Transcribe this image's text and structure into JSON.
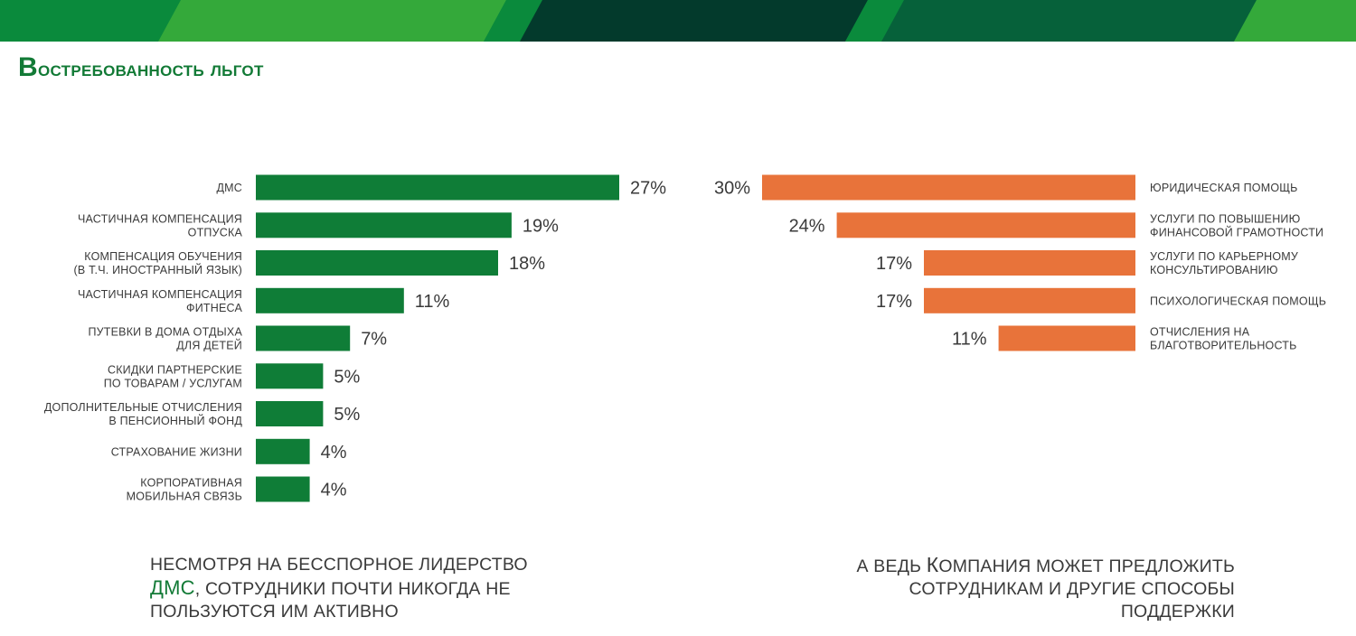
{
  "slide": {
    "title_first": "В",
    "title_rest": "остребованность льгот",
    "note_left": {
      "line1": "НЕСМОТРЯ НА БЕССПОРНОЕ ЛИДЕРСТВО",
      "line2_highlight": "ДМС",
      "line2_rest": ", СОТРУДНИКИ ПОЧТИ НИКОГДА НЕ",
      "line3": "ПОЛЬЗУЮТСЯ ИМ АКТИВНО"
    },
    "note_right": {
      "line1_a": "А ВЕДЬ ",
      "line1_cap": "К",
      "line1_b": "ОМПАНИЯ МОЖЕТ ПРЕДЛОЖИТЬ",
      "line2": "СОТРУДНИКАМ И ДРУГИЕ СПОСОБЫ",
      "line3": "ПОДДЕРЖКИ"
    }
  },
  "colors": {
    "green": "#0f7d37",
    "orange": "#e8733a",
    "title_green": "#127a36",
    "band_light": "#34a93a",
    "band_mid": "#0a8a3c",
    "band_dark": "#033a2c"
  },
  "chart_data": [
    {
      "type": "bar",
      "orientation": "horizontal",
      "categories": [
        [
          "ДМС"
        ],
        [
          "ЧАСТИЧНАЯ КОМПЕНСАЦИЯ",
          "ОТПУСКА"
        ],
        [
          "КОМПЕНСАЦИЯ ОБУЧЕНИЯ",
          "(В Т.Ч. ИНОСТРАННЫЙ ЯЗЫК)"
        ],
        [
          "ЧАСТИЧНАЯ КОМПЕНСАЦИЯ",
          "ФИТНЕСА"
        ],
        [
          "ПУТЕВКИ В ДОМА ОТДЫХА",
          "ДЛЯ ДЕТЕЙ"
        ],
        [
          "СКИДКИ ПАРТНЕРСКИЕ",
          "ПО ТОВАРАМ / УСЛУГАМ"
        ],
        [
          "ДОПОЛНИТЕЛЬНЫЕ ОТЧИСЛЕНИЯ",
          "В ПЕНСИОННЫЙ ФОНД"
        ],
        [
          "СТРАХОВАНИЕ ЖИЗНИ"
        ],
        [
          "КОРПОРАТИВНАЯ",
          "МОБИЛЬНАЯ СВЯЗЬ"
        ]
      ],
      "values": [
        27,
        19,
        18,
        11,
        7,
        5,
        5,
        4,
        4
      ],
      "value_labels": [
        "27%",
        "19%",
        "18%",
        "11%",
        "7%",
        "5%",
        "5%",
        "4%",
        "4%"
      ],
      "unit": "%",
      "color": "#0f7d37"
    },
    {
      "type": "bar",
      "orientation": "horizontal",
      "direction": "right-to-left",
      "categories": [
        [
          "ЮРИДИЧЕСКАЯ ПОМОЩЬ"
        ],
        [
          "УСЛУГИ ПО ПОВЫШЕНИЮ",
          "ФИНАНСОВОЙ ГРАМОТНОСТИ"
        ],
        [
          "УСЛУГИ ПО КАРЬЕРНОМУ",
          "КОНСУЛЬТИРОВАНИЮ"
        ],
        [
          "ПСИХОЛОГИЧЕСКАЯ ПОМОЩЬ"
        ],
        [
          "ОТЧИСЛЕНИЯ НА",
          "БЛАГОТВОРИТЕЛЬНОСТЬ"
        ]
      ],
      "values": [
        30,
        24,
        17,
        17,
        11
      ],
      "value_labels": [
        "30%",
        "24%",
        "17%",
        "17%",
        "11%"
      ],
      "unit": "%",
      "color": "#e8733a"
    }
  ]
}
